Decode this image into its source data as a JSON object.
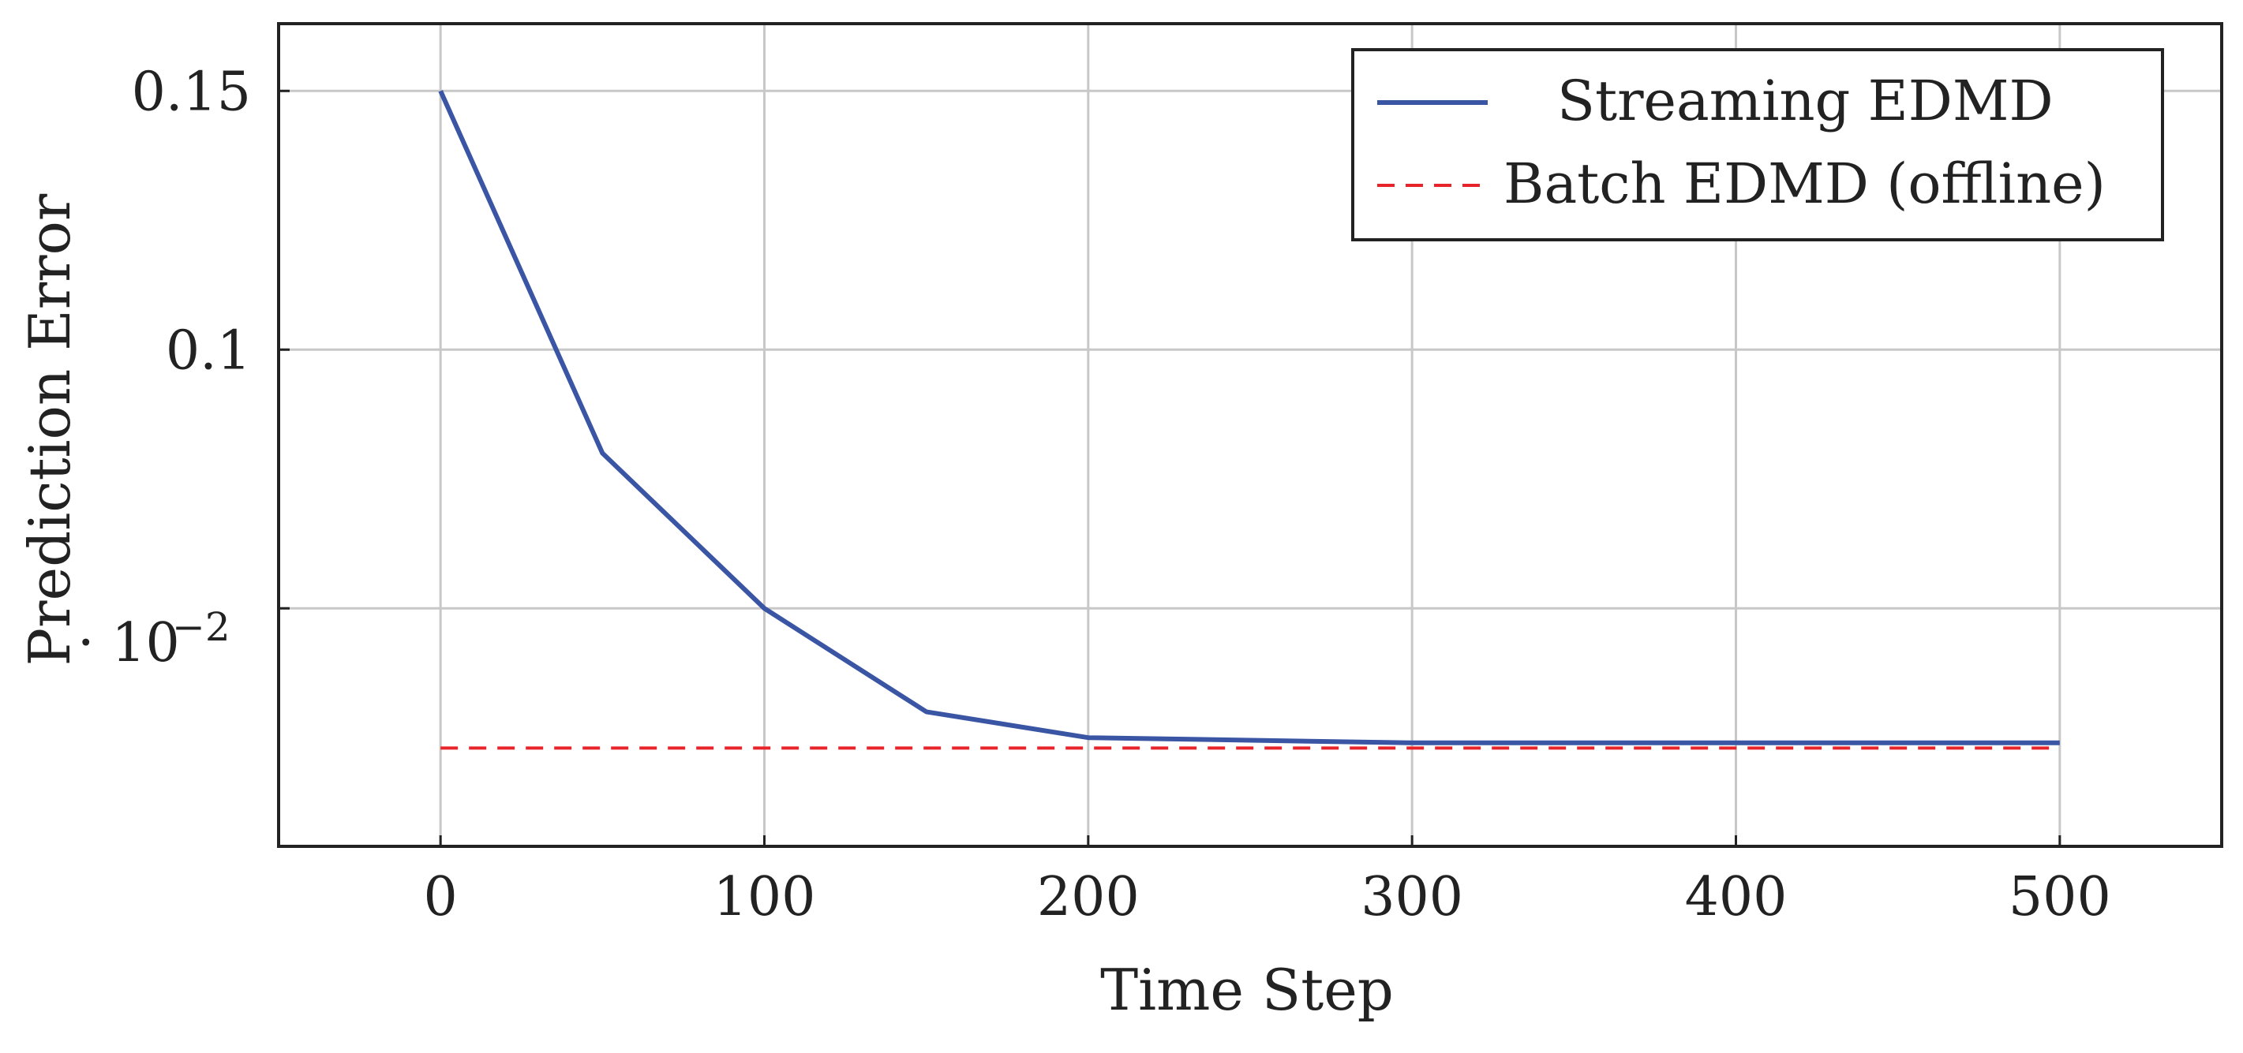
{
  "chart_data": {
    "type": "line",
    "xlabel": "Time Step",
    "ylabel": "Prediction Error",
    "y_scale_label": "· 10",
    "y_scale_exponent": "−2",
    "xlim": [
      -50,
      550
    ],
    "ylim": [
      0.004,
      0.163
    ],
    "grid": true,
    "legend_position": "top-right",
    "x_ticks": [
      {
        "value": 0,
        "label": "0"
      },
      {
        "value": 100,
        "label": "100"
      },
      {
        "value": 200,
        "label": "200"
      },
      {
        "value": 300,
        "label": "300"
      },
      {
        "value": 400,
        "label": "400"
      },
      {
        "value": 500,
        "label": "500"
      }
    ],
    "y_ticks": [
      {
        "value": 0.15,
        "label": "0.15"
      },
      {
        "value": 0.1,
        "label": "0.1"
      },
      {
        "value": 0.05,
        "label": ""
      }
    ],
    "series": [
      {
        "name": "Streaming EDMD",
        "color": "#3a55a4",
        "style": "solid",
        "x": [
          0,
          50,
          100,
          150,
          200,
          300,
          400,
          500
        ],
        "y": [
          0.15,
          0.08,
          0.05,
          0.03,
          0.025,
          0.024,
          0.024,
          0.024
        ]
      },
      {
        "name": "Batch EDMD (offline)",
        "color": "#e8242b",
        "style": "dashed",
        "x": [
          0,
          500
        ],
        "y": [
          0.023,
          0.023
        ]
      }
    ]
  }
}
